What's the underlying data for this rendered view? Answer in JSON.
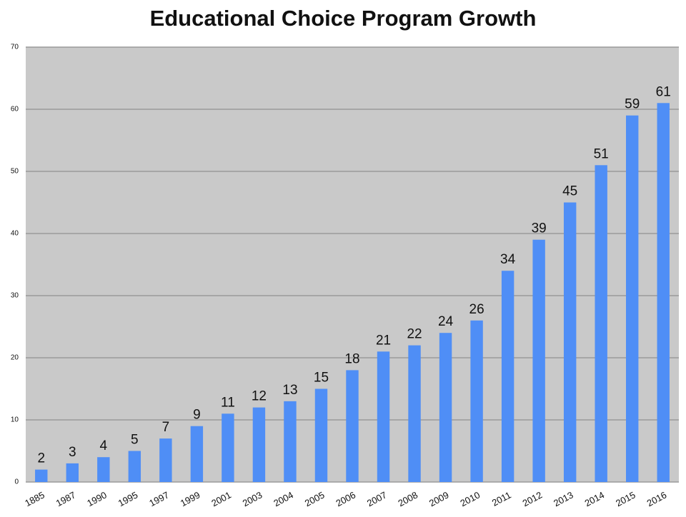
{
  "chart_data": {
    "type": "bar",
    "title": "Educational Choice Program Growth",
    "categories": [
      "1885",
      "1987",
      "1990",
      "1995",
      "1997",
      "1999",
      "2001",
      "2003",
      "2004",
      "2005",
      "2006",
      "2007",
      "2008",
      "2009",
      "2010",
      "2011",
      "2012",
      "2013",
      "2014",
      "2015",
      "2016"
    ],
    "values": [
      2,
      3,
      4,
      5,
      7,
      9,
      11,
      12,
      13,
      15,
      18,
      21,
      22,
      24,
      26,
      34,
      39,
      45,
      51,
      59,
      61
    ],
    "color": "#4f8ef6",
    "ylim": [
      0,
      70
    ],
    "yticks": [
      0,
      10,
      20,
      30,
      40,
      50,
      60,
      70
    ],
    "grid": true
  }
}
